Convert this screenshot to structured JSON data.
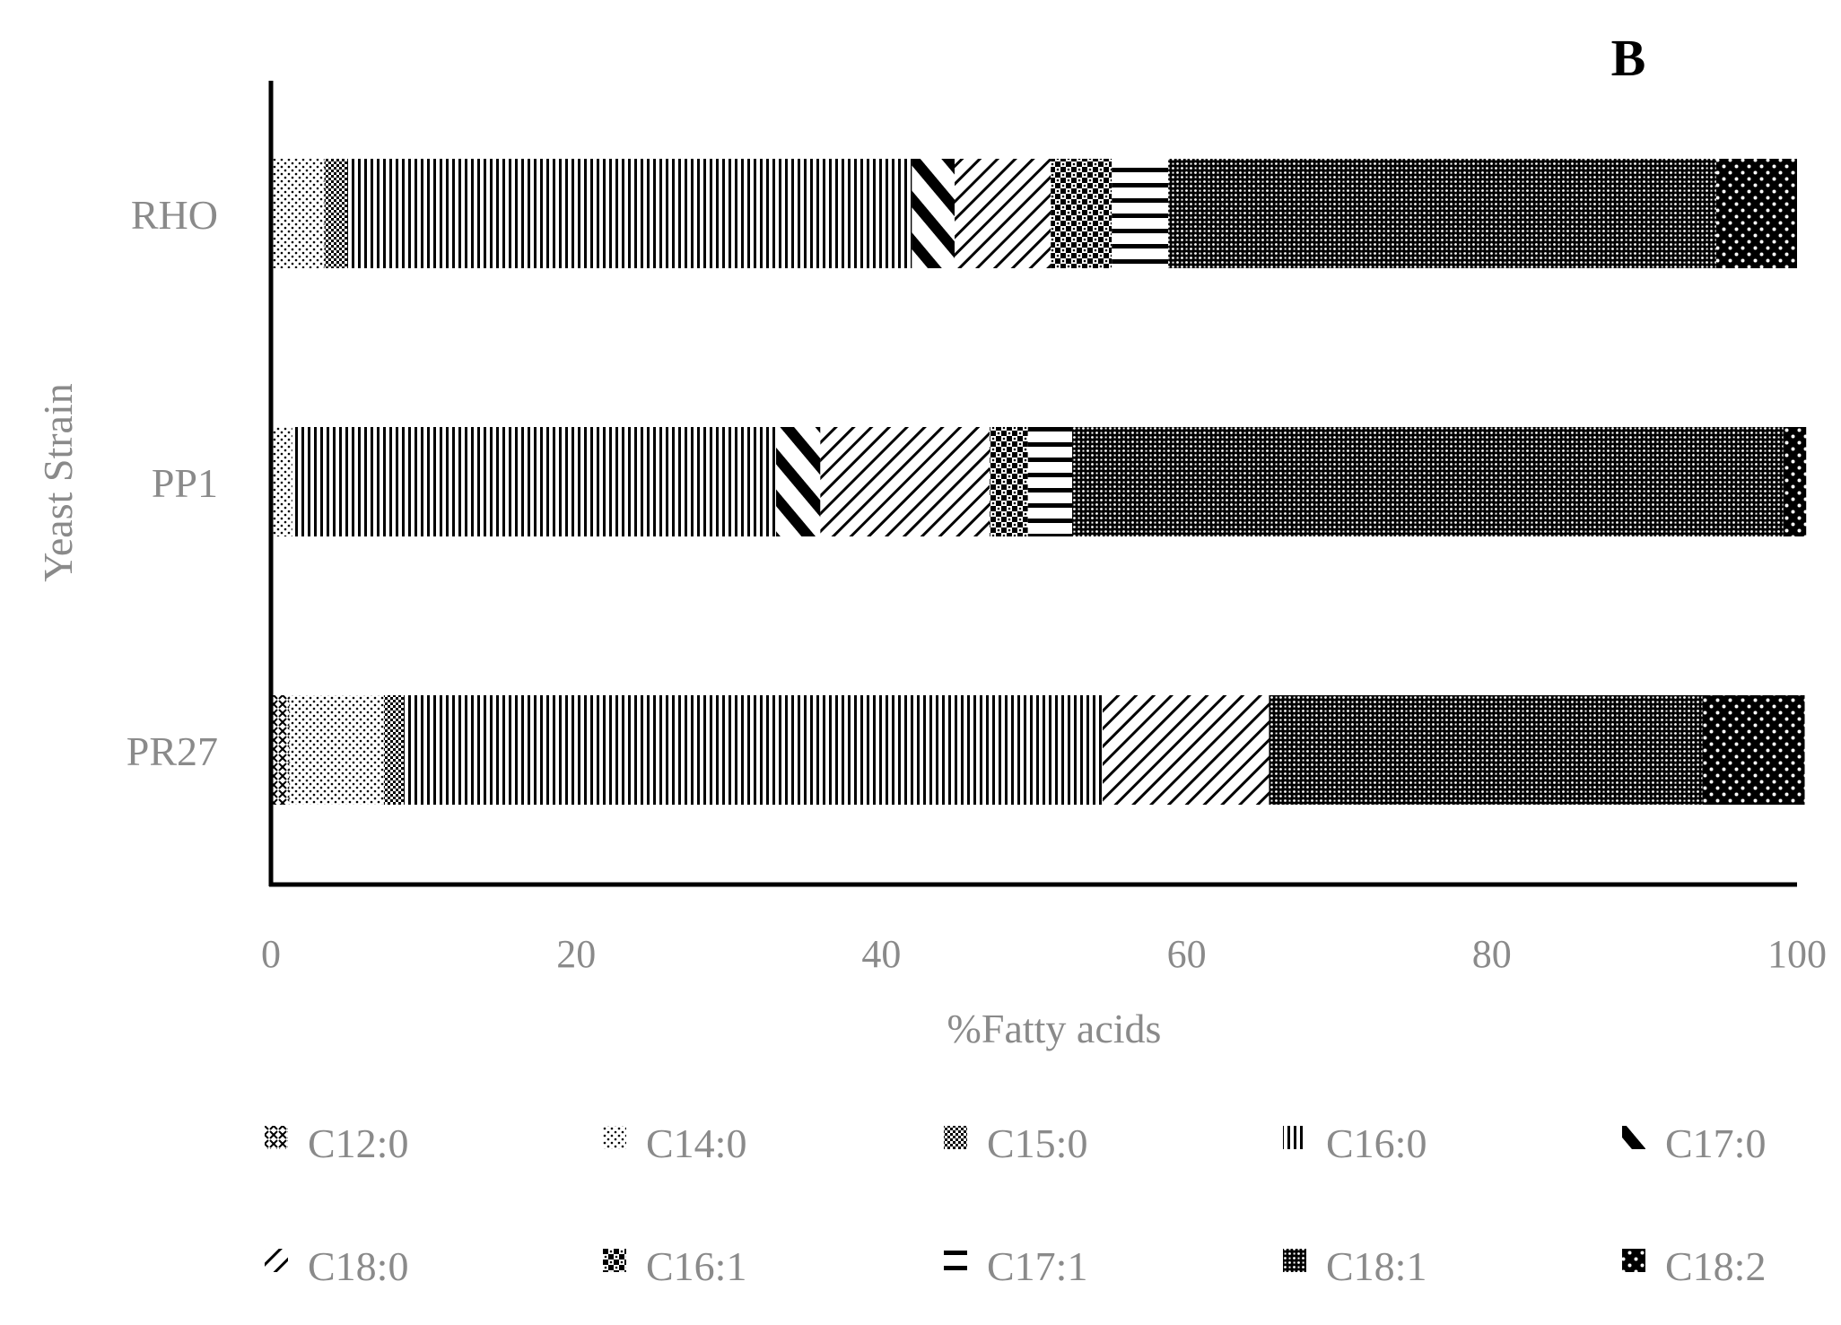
{
  "chart_data": {
    "type": "bar",
    "orientation": "horizontal",
    "stacked": true,
    "panel_label": "B",
    "title": "",
    "xlabel": "%Fatty acids",
    "ylabel": "Yeast Strain",
    "xlim": [
      0,
      100
    ],
    "xticks": [
      "0",
      "20",
      "40",
      "60",
      "80",
      "100"
    ],
    "categories": [
      "RHO",
      "PP1",
      "PR27"
    ],
    "legend_position": "bottom",
    "series": [
      {
        "name": "C12:0",
        "pattern": "crosshatch-small",
        "values": [
          0.0,
          0.0,
          1.2
        ]
      },
      {
        "name": "C14:0",
        "pattern": "dots-sparse",
        "values": [
          3.5,
          1.4,
          6.2
        ]
      },
      {
        "name": "C15:0",
        "pattern": "checker-dense",
        "values": [
          1.5,
          0.0,
          1.3
        ]
      },
      {
        "name": "C16:0",
        "pattern": "vertical-lines",
        "values": [
          37.0,
          31.7,
          45.8
        ]
      },
      {
        "name": "C17:0",
        "pattern": "wide-diagonal-downward",
        "values": [
          2.8,
          2.9,
          0.0
        ]
      },
      {
        "name": "C18:0",
        "pattern": "diagonal-upward",
        "values": [
          6.3,
          11.1,
          10.9
        ]
      },
      {
        "name": "C16:1",
        "pattern": "large-checker",
        "values": [
          4.0,
          2.5,
          0.0
        ]
      },
      {
        "name": "C17:1",
        "pattern": "horizontal-lines",
        "values": [
          3.7,
          2.9,
          0.0
        ]
      },
      {
        "name": "C18:1",
        "pattern": "dense-dotted-grid",
        "values": [
          35.9,
          46.6,
          28.4
        ]
      },
      {
        "name": "C18:2",
        "pattern": "dark-white-dots",
        "values": [
          5.3,
          1.5,
          6.7
        ]
      }
    ]
  },
  "colors": {
    "bar_ink": "#000000",
    "text_muted": "#8a8a8a",
    "background": "#ffffff"
  }
}
